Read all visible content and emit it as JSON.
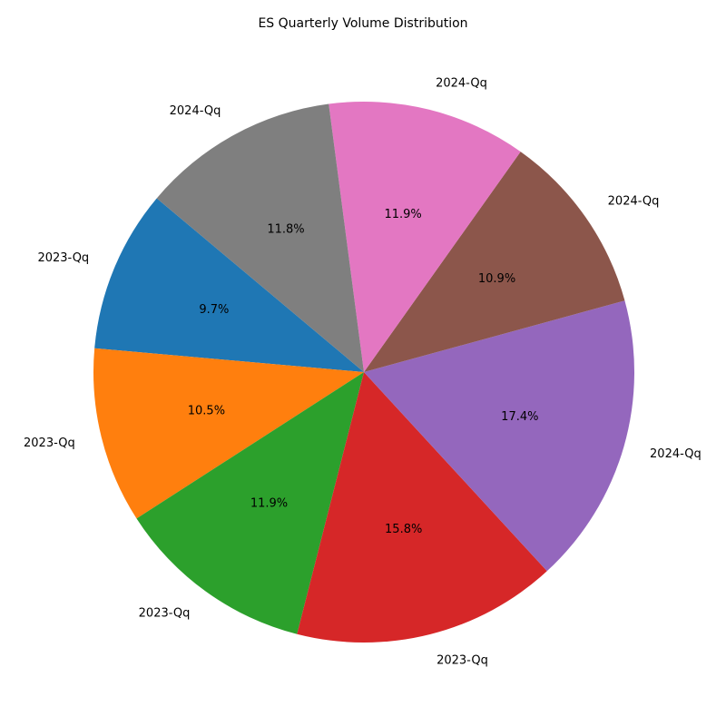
{
  "chart_data": {
    "type": "pie",
    "title": "ES Quarterly Volume Distribution",
    "start_angle_degrees": 140,
    "direction": "counterclockwise",
    "categories": [
      "2023-Qq",
      "2023-Qq",
      "2023-Qq",
      "2023-Qq",
      "2024-Qq",
      "2024-Qq",
      "2024-Qq",
      "2024-Qq"
    ],
    "values": [
      9.7,
      10.5,
      11.9,
      15.8,
      17.4,
      10.9,
      11.9,
      11.8
    ],
    "percent_labels": [
      "9.7%",
      "10.5%",
      "11.9%",
      "15.8%",
      "17.4%",
      "10.9%",
      "11.9%",
      "11.8%"
    ],
    "colors": [
      "#1f77b4",
      "#ff7f0e",
      "#2ca02c",
      "#d62728",
      "#9467bd",
      "#8c564b",
      "#e377c2",
      "#7f7f7f"
    ]
  }
}
